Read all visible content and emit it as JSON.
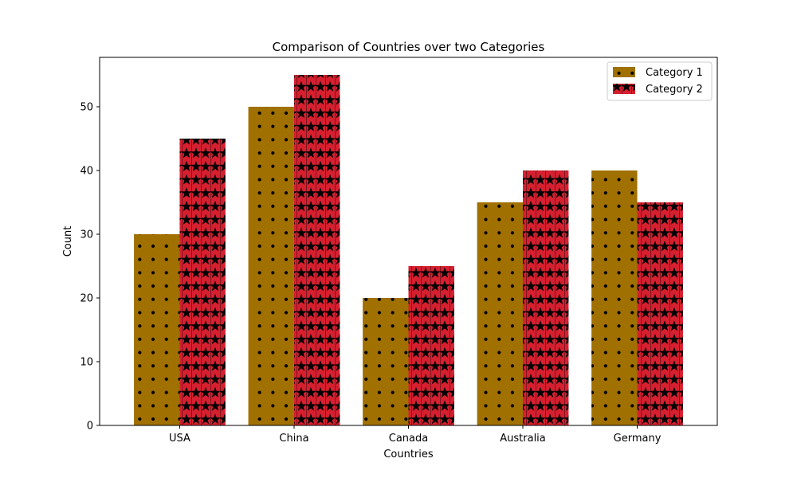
{
  "chart_data": {
    "type": "bar",
    "title": "Comparison of Countries over two Categories",
    "xlabel": "Countries",
    "ylabel": "Count",
    "categories": [
      "USA",
      "China",
      "Canada",
      "Australia",
      "Germany"
    ],
    "series": [
      {
        "name": "Category 1",
        "values": [
          30,
          50,
          20,
          35,
          40
        ],
        "color": "#a07000",
        "hatch": "dots"
      },
      {
        "name": "Category 2",
        "values": [
          45,
          55,
          25,
          40,
          35
        ],
        "color": "#d62030",
        "hatch": "stars"
      }
    ],
    "ylim": [
      0,
      57.75
    ],
    "yticks": [
      0,
      10,
      20,
      30,
      40,
      50
    ],
    "grid": false,
    "legend": "top-right"
  }
}
